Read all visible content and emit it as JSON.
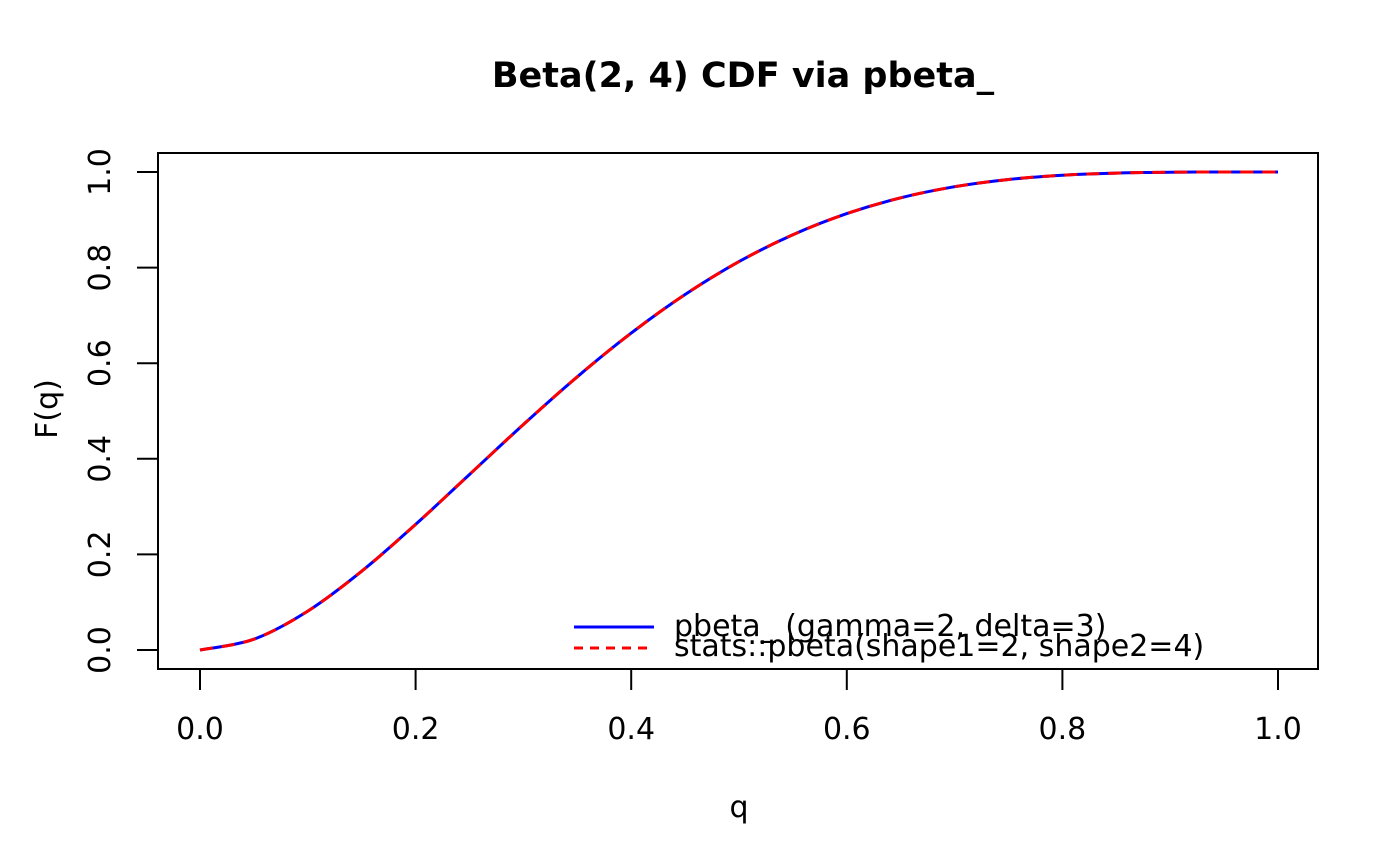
{
  "window": {
    "background": "#ffffff",
    "foreground": "#000000"
  },
  "chart_data": {
    "type": "line",
    "title": "Beta(2, 4) CDF via pbeta_",
    "xlabel": "q",
    "ylabel": "F(q)",
    "xlim": [
      0,
      1
    ],
    "ylim": [
      0,
      1
    ],
    "grid": false,
    "axis_color": "#000000",
    "x_ticks": {
      "values": [
        0,
        0.2,
        0.4,
        0.6,
        0.8,
        1.0
      ],
      "labels": [
        "0.0",
        "0.2",
        "0.4",
        "0.6",
        "0.8",
        "1.0"
      ]
    },
    "y_ticks": {
      "values": [
        0,
        0.2,
        0.4,
        0.6,
        0.8,
        1.0
      ],
      "labels": [
        "0.0",
        "0.2",
        "0.4",
        "0.6",
        "0.8",
        "1.0"
      ]
    },
    "x": [
      0,
      0.05,
      0.1,
      0.15,
      0.2,
      0.25,
      0.3,
      0.35,
      0.4,
      0.45,
      0.5,
      0.55,
      0.6,
      0.65,
      0.7,
      0.75,
      0.8,
      0.85,
      0.9,
      0.95,
      1.0
    ],
    "series": [
      {
        "name": "pbeta_ (gamma=2, delta=3)",
        "color": "#0000FF",
        "line_style": "solid",
        "values": [
          0,
          0.02259,
          0.08146,
          0.16479,
          0.26272,
          0.36719,
          0.47178,
          0.57159,
          0.66304,
          0.74378,
          0.8125,
          0.86878,
          0.91296,
          0.94598,
          0.96922,
          0.98438,
          0.99328,
          0.99777,
          0.99954,
          0.99997,
          1.0
        ]
      },
      {
        "name": "stats::pbeta(shape1=2, shape2=4)",
        "color": "#FF0000",
        "line_style": "dashed",
        "values": [
          0,
          0.02259,
          0.08146,
          0.16479,
          0.26272,
          0.36719,
          0.47178,
          0.57159,
          0.66304,
          0.74378,
          0.8125,
          0.86878,
          0.91296,
          0.94598,
          0.96922,
          0.98438,
          0.99328,
          0.99777,
          0.99954,
          0.99997,
          1.0
        ]
      }
    ],
    "legend": {
      "position": "inside-bottom-right",
      "box": false,
      "entries": [
        {
          "label": "pbeta_ (gamma=2, delta=3)",
          "color": "#0000FF",
          "line_style": "solid"
        },
        {
          "label": "stats::pbeta(shape1=2, shape2=4)",
          "color": "#FF0000",
          "line_style": "dashed"
        }
      ]
    }
  }
}
